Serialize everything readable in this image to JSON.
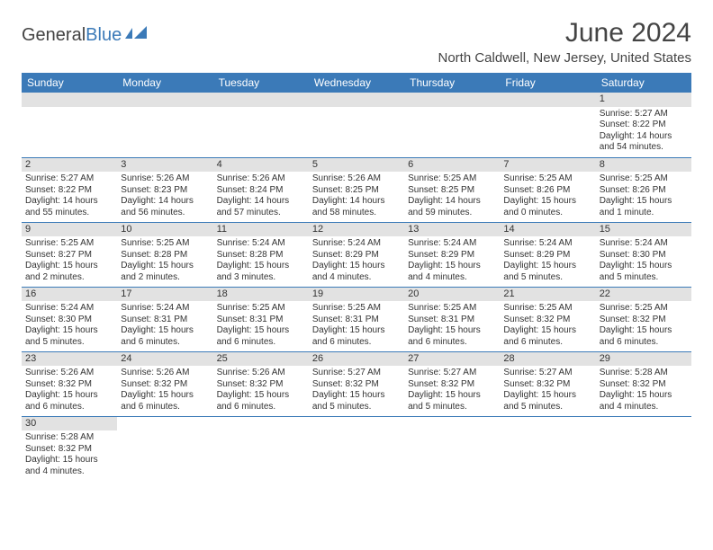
{
  "logo": {
    "text_a": "General",
    "text_b": "Blue"
  },
  "title": "June 2024",
  "location": "North Caldwell, New Jersey, United States",
  "day_headers": [
    "Sunday",
    "Monday",
    "Tuesday",
    "Wednesday",
    "Thursday",
    "Friday",
    "Saturday"
  ],
  "colors": {
    "header_bg": "#3b7ab8",
    "header_fg": "#ffffff",
    "daynum_bg": "#e2e2e2",
    "rule": "#3b7ab8",
    "logo_blue": "#3b7ab8"
  },
  "weeks": [
    [
      {
        "blank": true
      },
      {
        "blank": true
      },
      {
        "blank": true
      },
      {
        "blank": true
      },
      {
        "blank": true
      },
      {
        "blank": true
      },
      {
        "day": "1",
        "sunrise": "Sunrise: 5:27 AM",
        "sunset": "Sunset: 8:22 PM",
        "daylight1": "Daylight: 14 hours",
        "daylight2": "and 54 minutes."
      }
    ],
    [
      {
        "day": "2",
        "sunrise": "Sunrise: 5:27 AM",
        "sunset": "Sunset: 8:22 PM",
        "daylight1": "Daylight: 14 hours",
        "daylight2": "and 55 minutes."
      },
      {
        "day": "3",
        "sunrise": "Sunrise: 5:26 AM",
        "sunset": "Sunset: 8:23 PM",
        "daylight1": "Daylight: 14 hours",
        "daylight2": "and 56 minutes."
      },
      {
        "day": "4",
        "sunrise": "Sunrise: 5:26 AM",
        "sunset": "Sunset: 8:24 PM",
        "daylight1": "Daylight: 14 hours",
        "daylight2": "and 57 minutes."
      },
      {
        "day": "5",
        "sunrise": "Sunrise: 5:26 AM",
        "sunset": "Sunset: 8:25 PM",
        "daylight1": "Daylight: 14 hours",
        "daylight2": "and 58 minutes."
      },
      {
        "day": "6",
        "sunrise": "Sunrise: 5:25 AM",
        "sunset": "Sunset: 8:25 PM",
        "daylight1": "Daylight: 14 hours",
        "daylight2": "and 59 minutes."
      },
      {
        "day": "7",
        "sunrise": "Sunrise: 5:25 AM",
        "sunset": "Sunset: 8:26 PM",
        "daylight1": "Daylight: 15 hours",
        "daylight2": "and 0 minutes."
      },
      {
        "day": "8",
        "sunrise": "Sunrise: 5:25 AM",
        "sunset": "Sunset: 8:26 PM",
        "daylight1": "Daylight: 15 hours",
        "daylight2": "and 1 minute."
      }
    ],
    [
      {
        "day": "9",
        "sunrise": "Sunrise: 5:25 AM",
        "sunset": "Sunset: 8:27 PM",
        "daylight1": "Daylight: 15 hours",
        "daylight2": "and 2 minutes."
      },
      {
        "day": "10",
        "sunrise": "Sunrise: 5:25 AM",
        "sunset": "Sunset: 8:28 PM",
        "daylight1": "Daylight: 15 hours",
        "daylight2": "and 2 minutes."
      },
      {
        "day": "11",
        "sunrise": "Sunrise: 5:24 AM",
        "sunset": "Sunset: 8:28 PM",
        "daylight1": "Daylight: 15 hours",
        "daylight2": "and 3 minutes."
      },
      {
        "day": "12",
        "sunrise": "Sunrise: 5:24 AM",
        "sunset": "Sunset: 8:29 PM",
        "daylight1": "Daylight: 15 hours",
        "daylight2": "and 4 minutes."
      },
      {
        "day": "13",
        "sunrise": "Sunrise: 5:24 AM",
        "sunset": "Sunset: 8:29 PM",
        "daylight1": "Daylight: 15 hours",
        "daylight2": "and 4 minutes."
      },
      {
        "day": "14",
        "sunrise": "Sunrise: 5:24 AM",
        "sunset": "Sunset: 8:29 PM",
        "daylight1": "Daylight: 15 hours",
        "daylight2": "and 5 minutes."
      },
      {
        "day": "15",
        "sunrise": "Sunrise: 5:24 AM",
        "sunset": "Sunset: 8:30 PM",
        "daylight1": "Daylight: 15 hours",
        "daylight2": "and 5 minutes."
      }
    ],
    [
      {
        "day": "16",
        "sunrise": "Sunrise: 5:24 AM",
        "sunset": "Sunset: 8:30 PM",
        "daylight1": "Daylight: 15 hours",
        "daylight2": "and 5 minutes."
      },
      {
        "day": "17",
        "sunrise": "Sunrise: 5:24 AM",
        "sunset": "Sunset: 8:31 PM",
        "daylight1": "Daylight: 15 hours",
        "daylight2": "and 6 minutes."
      },
      {
        "day": "18",
        "sunrise": "Sunrise: 5:25 AM",
        "sunset": "Sunset: 8:31 PM",
        "daylight1": "Daylight: 15 hours",
        "daylight2": "and 6 minutes."
      },
      {
        "day": "19",
        "sunrise": "Sunrise: 5:25 AM",
        "sunset": "Sunset: 8:31 PM",
        "daylight1": "Daylight: 15 hours",
        "daylight2": "and 6 minutes."
      },
      {
        "day": "20",
        "sunrise": "Sunrise: 5:25 AM",
        "sunset": "Sunset: 8:31 PM",
        "daylight1": "Daylight: 15 hours",
        "daylight2": "and 6 minutes."
      },
      {
        "day": "21",
        "sunrise": "Sunrise: 5:25 AM",
        "sunset": "Sunset: 8:32 PM",
        "daylight1": "Daylight: 15 hours",
        "daylight2": "and 6 minutes."
      },
      {
        "day": "22",
        "sunrise": "Sunrise: 5:25 AM",
        "sunset": "Sunset: 8:32 PM",
        "daylight1": "Daylight: 15 hours",
        "daylight2": "and 6 minutes."
      }
    ],
    [
      {
        "day": "23",
        "sunrise": "Sunrise: 5:26 AM",
        "sunset": "Sunset: 8:32 PM",
        "daylight1": "Daylight: 15 hours",
        "daylight2": "and 6 minutes."
      },
      {
        "day": "24",
        "sunrise": "Sunrise: 5:26 AM",
        "sunset": "Sunset: 8:32 PM",
        "daylight1": "Daylight: 15 hours",
        "daylight2": "and 6 minutes."
      },
      {
        "day": "25",
        "sunrise": "Sunrise: 5:26 AM",
        "sunset": "Sunset: 8:32 PM",
        "daylight1": "Daylight: 15 hours",
        "daylight2": "and 6 minutes."
      },
      {
        "day": "26",
        "sunrise": "Sunrise: 5:27 AM",
        "sunset": "Sunset: 8:32 PM",
        "daylight1": "Daylight: 15 hours",
        "daylight2": "and 5 minutes."
      },
      {
        "day": "27",
        "sunrise": "Sunrise: 5:27 AM",
        "sunset": "Sunset: 8:32 PM",
        "daylight1": "Daylight: 15 hours",
        "daylight2": "and 5 minutes."
      },
      {
        "day": "28",
        "sunrise": "Sunrise: 5:27 AM",
        "sunset": "Sunset: 8:32 PM",
        "daylight1": "Daylight: 15 hours",
        "daylight2": "and 5 minutes."
      },
      {
        "day": "29",
        "sunrise": "Sunrise: 5:28 AM",
        "sunset": "Sunset: 8:32 PM",
        "daylight1": "Daylight: 15 hours",
        "daylight2": "and 4 minutes."
      }
    ],
    [
      {
        "day": "30",
        "sunrise": "Sunrise: 5:28 AM",
        "sunset": "Sunset: 8:32 PM",
        "daylight1": "Daylight: 15 hours",
        "daylight2": "and 4 minutes."
      },
      {
        "blank": true
      },
      {
        "blank": true
      },
      {
        "blank": true
      },
      {
        "blank": true
      },
      {
        "blank": true
      },
      {
        "blank": true
      }
    ]
  ]
}
